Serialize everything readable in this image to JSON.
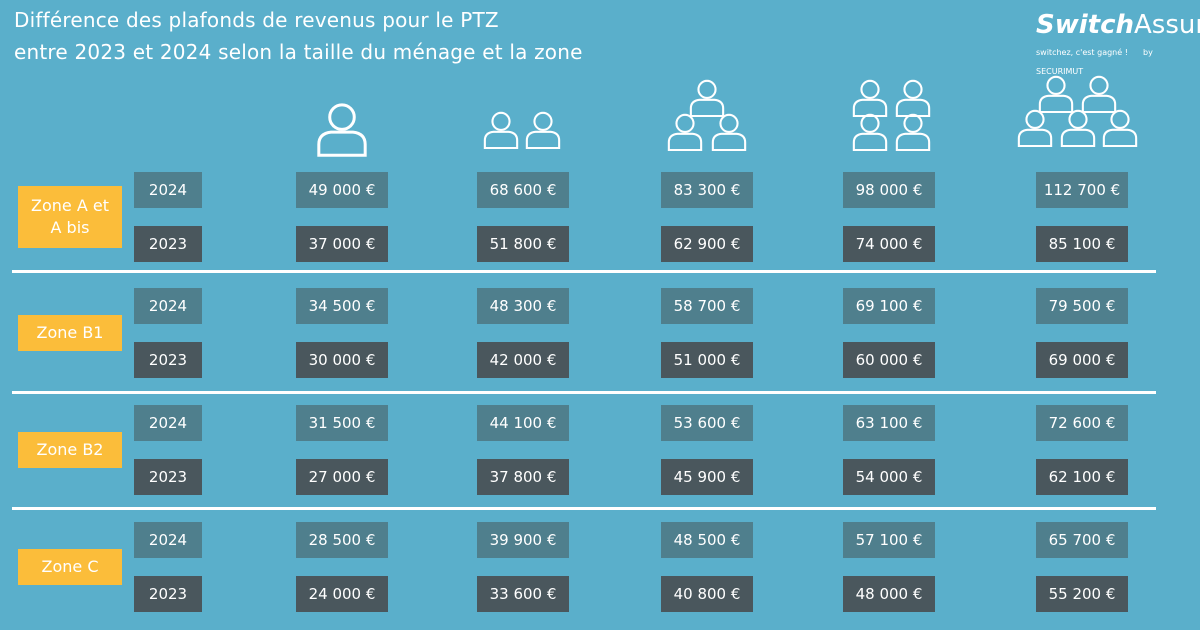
{
  "header": {
    "title_lines": [
      "Différence des plafonds de revenus pour le PTZ",
      "entre 2023 et 2024 selon la taille du ménage et la zone"
    ]
  },
  "logo": {
    "brand_a": "Switch",
    "brand_b": "Assur",
    "tagline": "switchez, c'est gagné !",
    "by": "by SECURIMUT"
  },
  "table": {
    "zones": [
      {
        "label": "Zone A et A bis",
        "rows": [
          {
            "year": "2024",
            "values": [
              "49 000 €",
              "68 600 €",
              "83 300 €",
              "98 000 €",
              "112 700 €"
            ]
          },
          {
            "year": "2023",
            "values": [
              "37 000 €",
              "51 800 €",
              "62 900 €",
              "74 000 €",
              "85 100 €"
            ]
          }
        ]
      },
      {
        "label": "Zone B1",
        "rows": [
          {
            "year": "2024",
            "values": [
              "34 500 €",
              "48 300 €",
              "58 700 €",
              "69 100 €",
              "79 500 €"
            ]
          },
          {
            "year": "2023",
            "values": [
              "30 000 €",
              "42 000 €",
              "51 000 €",
              "60 000 €",
              "69 000 €"
            ]
          }
        ]
      },
      {
        "label": "Zone B2",
        "rows": [
          {
            "year": "2024",
            "values": [
              "31 500 €",
              "44 100 €",
              "53 600 €",
              "63 100 €",
              "72 600 €"
            ]
          },
          {
            "year": "2023",
            "values": [
              "27 000 €",
              "37 800 €",
              "45 900 €",
              "54 000 €",
              "62 100 €"
            ]
          }
        ]
      },
      {
        "label": "Zone C",
        "rows": [
          {
            "year": "2024",
            "values": [
              "28 500 €",
              "39 900 €",
              "48 500 €",
              "57 100 €",
              "65 700 €"
            ]
          },
          {
            "year": "2023",
            "values": [
              "24 000 €",
              "33 600 €",
              "40 800 €",
              "48 000 €",
              "55 200 €"
            ]
          }
        ]
      }
    ]
  }
}
